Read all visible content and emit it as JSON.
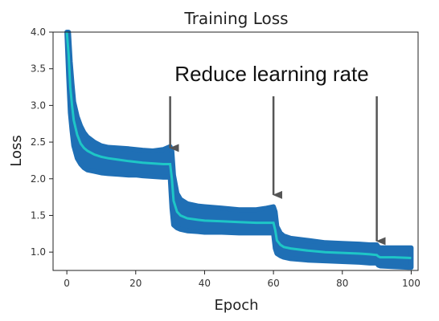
{
  "chart_data": {
    "type": "line",
    "title": "Training Loss",
    "xlabel": "Epoch",
    "ylabel": "Loss",
    "xlim": [
      -4,
      102
    ],
    "ylim": [
      0.75,
      4.0
    ],
    "x_ticks": [
      0,
      20,
      40,
      60,
      80,
      100
    ],
    "y_ticks": [
      1.0,
      1.5,
      2.0,
      2.5,
      3.0,
      3.5,
      4.0
    ],
    "grid": false,
    "colors": {
      "noise": "#1f6fb5",
      "mean": "#1ec6c6",
      "arrow": "#555555"
    },
    "series": [
      {
        "style": "noisy-band",
        "x": [
          0,
          0.5,
          1,
          1.5,
          2,
          3,
          4,
          5,
          6,
          8,
          10,
          12,
          15,
          18,
          20,
          22,
          25,
          28,
          30,
          30.5,
          31,
          32,
          33,
          35,
          38,
          40,
          45,
          50,
          55,
          58,
          60,
          60.5,
          61,
          62,
          63,
          65,
          70,
          75,
          80,
          85,
          88,
          90,
          90.5,
          91,
          95,
          100
        ],
        "upper": [
          4.0,
          4.0,
          3.6,
          3.3,
          3.05,
          2.85,
          2.72,
          2.63,
          2.57,
          2.5,
          2.45,
          2.43,
          2.42,
          2.41,
          2.4,
          2.39,
          2.38,
          2.4,
          2.44,
          2.38,
          2.05,
          1.8,
          1.72,
          1.66,
          1.63,
          1.62,
          1.6,
          1.58,
          1.58,
          1.6,
          1.62,
          1.55,
          1.35,
          1.26,
          1.22,
          1.19,
          1.16,
          1.13,
          1.12,
          1.11,
          1.1,
          1.1,
          1.07,
          1.06,
          1.06,
          1.06
        ],
        "lower": [
          4.0,
          3.4,
          2.9,
          2.65,
          2.45,
          2.28,
          2.2,
          2.15,
          2.12,
          2.1,
          2.08,
          2.07,
          2.06,
          2.05,
          2.05,
          2.04,
          2.03,
          2.02,
          2.02,
          1.6,
          1.37,
          1.33,
          1.31,
          1.29,
          1.28,
          1.27,
          1.27,
          1.26,
          1.26,
          1.26,
          1.26,
          1.05,
          0.98,
          0.95,
          0.93,
          0.91,
          0.89,
          0.88,
          0.87,
          0.86,
          0.85,
          0.85,
          0.82,
          0.81,
          0.8,
          0.79
        ]
      },
      {
        "style": "mean-line",
        "x": [
          0,
          0.5,
          1,
          1.5,
          2,
          3,
          4,
          5,
          6,
          8,
          10,
          12,
          15,
          18,
          20,
          22,
          25,
          28,
          30,
          30.5,
          31,
          32,
          33,
          35,
          38,
          40,
          45,
          50,
          55,
          58,
          60,
          60.5,
          61,
          62,
          63,
          65,
          70,
          75,
          80,
          85,
          88,
          90,
          90.5,
          91,
          95,
          100
        ],
        "y": [
          4.0,
          3.7,
          3.25,
          3.0,
          2.8,
          2.6,
          2.48,
          2.42,
          2.38,
          2.33,
          2.3,
          2.28,
          2.26,
          2.24,
          2.23,
          2.22,
          2.21,
          2.2,
          2.2,
          2.0,
          1.7,
          1.55,
          1.5,
          1.46,
          1.44,
          1.43,
          1.42,
          1.41,
          1.4,
          1.4,
          1.4,
          1.3,
          1.16,
          1.1,
          1.07,
          1.05,
          1.02,
          1.0,
          0.99,
          0.98,
          0.97,
          0.96,
          0.94,
          0.93,
          0.93,
          0.92
        ]
      }
    ],
    "annotations": [
      {
        "text": "Reduce learning rate"
      },
      {
        "arrow_x": 30,
        "arrow_y_data": 2.42
      },
      {
        "arrow_x": 60,
        "arrow_y_data": 1.78
      },
      {
        "arrow_x": 90,
        "arrow_y_data": 1.15
      }
    ]
  }
}
